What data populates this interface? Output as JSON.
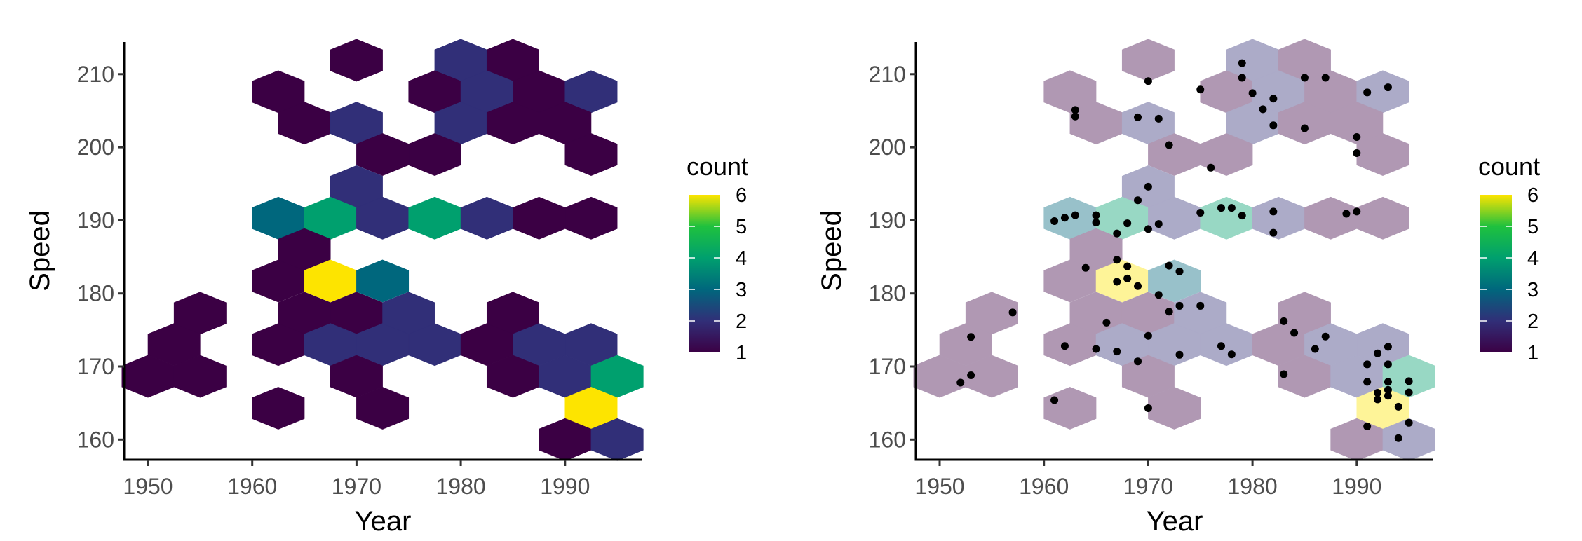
{
  "chart_data": [
    {
      "type": "hexbin",
      "xlabel": "Year",
      "ylabel": "Speed",
      "xlim": [
        1948,
        1997.3
      ],
      "ylim": [
        157.3,
        214.6
      ],
      "xticks": [
        1950,
        1960,
        1970,
        1980,
        1990
      ],
      "yticks": [
        160,
        170,
        180,
        190,
        200,
        210
      ],
      "grid": false,
      "legend": {
        "title": "count",
        "placement": "right",
        "min": 1,
        "max": 6,
        "labels": [
          "1",
          "2",
          "3",
          "4",
          "5",
          "6"
        ]
      },
      "colorscale": [
        "#3b0044",
        "#312f78",
        "#00677d",
        "#00a06e",
        "#1fc13e",
        "#fde400"
      ],
      "hex_alpha": 1,
      "hexes": [
        [
          1970,
          211.9,
          1
        ],
        [
          1980,
          211.9,
          2
        ],
        [
          1985,
          211.9,
          1
        ],
        [
          1962.5,
          207.6,
          1
        ],
        [
          1977.5,
          207.6,
          1
        ],
        [
          1982.5,
          207.6,
          2
        ],
        [
          1987.5,
          207.6,
          1
        ],
        [
          1992.5,
          207.6,
          2
        ],
        [
          1965,
          203.3,
          1
        ],
        [
          1970,
          203.3,
          2
        ],
        [
          1980,
          203.3,
          2
        ],
        [
          1985,
          203.3,
          1
        ],
        [
          1990,
          203.3,
          1
        ],
        [
          1972.5,
          199.0,
          1
        ],
        [
          1977.5,
          199.0,
          1
        ],
        [
          1992.5,
          199.0,
          1
        ],
        [
          1970,
          194.6,
          2
        ],
        [
          1962.5,
          190.3,
          3
        ],
        [
          1967.5,
          190.3,
          4
        ],
        [
          1972.5,
          190.3,
          2
        ],
        [
          1977.5,
          190.3,
          4
        ],
        [
          1982.5,
          190.3,
          2
        ],
        [
          1987.5,
          190.3,
          1
        ],
        [
          1992.5,
          190.3,
          1
        ],
        [
          1965,
          186.0,
          1
        ],
        [
          1962.5,
          181.7,
          1
        ],
        [
          1967.5,
          181.7,
          6
        ],
        [
          1972.5,
          181.7,
          3
        ],
        [
          1955,
          177.3,
          1
        ],
        [
          1965,
          177.3,
          1
        ],
        [
          1970,
          177.3,
          1
        ],
        [
          1975,
          177.3,
          2
        ],
        [
          1985,
          177.3,
          1
        ],
        [
          1952.5,
          173.0,
          1
        ],
        [
          1962.5,
          173.0,
          1
        ],
        [
          1967.5,
          173.0,
          2
        ],
        [
          1972.5,
          173.0,
          2
        ],
        [
          1977.5,
          173.0,
          2
        ],
        [
          1982.5,
          173.0,
          1
        ],
        [
          1987.5,
          173.0,
          2
        ],
        [
          1992.5,
          173.0,
          2
        ],
        [
          1950,
          168.65,
          1
        ],
        [
          1955,
          168.65,
          1
        ],
        [
          1970,
          168.65,
          1
        ],
        [
          1985,
          168.65,
          1
        ],
        [
          1990,
          168.65,
          2
        ],
        [
          1995,
          168.65,
          4
        ],
        [
          1962.5,
          164.3,
          1
        ],
        [
          1972.5,
          164.3,
          1
        ],
        [
          1992.5,
          164.3,
          6
        ],
        [
          1990,
          160.0,
          1
        ],
        [
          1995,
          160.0,
          2
        ]
      ]
    },
    {
      "type": "hexbin+scatter",
      "xlabel": "Year",
      "ylabel": "Speed",
      "xlim": [
        1948,
        1997.3
      ],
      "ylim": [
        157.3,
        214.6
      ],
      "xticks": [
        1950,
        1960,
        1970,
        1980,
        1990
      ],
      "yticks": [
        160,
        170,
        180,
        190,
        200,
        210
      ],
      "grid": false,
      "legend": {
        "title": "count",
        "placement": "right",
        "min": 1,
        "max": 6,
        "labels": [
          "1",
          "2",
          "3",
          "4",
          "5",
          "6"
        ]
      },
      "colorscale": [
        "#3b0044",
        "#312f78",
        "#00677d",
        "#00a06e",
        "#1fc13e",
        "#fde400"
      ],
      "hex_alpha": 0.4,
      "hexes": "same as first panel",
      "points_color": "#000000",
      "points": [
        [
          1970,
          209.05
        ],
        [
          1963,
          205.1
        ],
        [
          1963,
          204.2
        ],
        [
          1969,
          204.1
        ],
        [
          1971,
          203.9
        ],
        [
          1972,
          200.3
        ],
        [
          1970,
          194.6
        ],
        [
          1969,
          192.75
        ],
        [
          1961,
          189.9
        ],
        [
          1962,
          190.35
        ],
        [
          1963,
          190.7
        ],
        [
          1965,
          190.7
        ],
        [
          1965,
          189.7
        ],
        [
          1968,
          189.6
        ],
        [
          1967,
          188.2
        ],
        [
          1970,
          188.8
        ],
        [
          1971,
          189.5
        ],
        [
          1967,
          184.6
        ],
        [
          1979,
          211.5
        ],
        [
          1979,
          209.5
        ],
        [
          1975,
          207.9
        ],
        [
          1980,
          207.4
        ],
        [
          1982,
          206.65
        ],
        [
          1981,
          205.2
        ],
        [
          1982,
          203.0
        ],
        [
          1985,
          209.5
        ],
        [
          1987,
          209.5
        ],
        [
          1991,
          207.5
        ],
        [
          1993,
          208.2
        ],
        [
          1985,
          202.6
        ],
        [
          1990,
          201.4
        ],
        [
          1990,
          199.2
        ],
        [
          1976,
          197.2
        ],
        [
          1975,
          191.05
        ],
        [
          1977,
          191.7
        ],
        [
          1978,
          191.7
        ],
        [
          1979,
          190.65
        ],
        [
          1982,
          191.2
        ],
        [
          1982,
          188.3
        ],
        [
          1989,
          190.9
        ],
        [
          1990,
          191.2
        ],
        [
          1968,
          183.7
        ],
        [
          1964,
          183.5
        ],
        [
          1967,
          181.6
        ],
        [
          1968,
          182.05
        ],
        [
          1969,
          181.0
        ],
        [
          1972,
          183.8
        ],
        [
          1973,
          183.0
        ],
        [
          1971,
          179.8
        ],
        [
          1972,
          177.5
        ],
        [
          1957,
          177.4
        ],
        [
          1966,
          176.0
        ],
        [
          1953,
          174.05
        ],
        [
          1970,
          174.2
        ],
        [
          1962,
          172.8
        ],
        [
          1965,
          172.4
        ],
        [
          1967,
          172.05
        ],
        [
          1969,
          170.7
        ],
        [
          1953,
          168.8
        ],
        [
          1952,
          167.8
        ],
        [
          1961,
          165.4
        ],
        [
          1970,
          164.3
        ],
        [
          1973,
          178.3
        ],
        [
          1975,
          178.3
        ],
        [
          1973,
          171.6
        ],
        [
          1977,
          172.8
        ],
        [
          1978,
          171.65
        ],
        [
          1983,
          176.2
        ],
        [
          1984,
          174.6
        ],
        [
          1987,
          174.1
        ],
        [
          1986,
          172.4
        ],
        [
          1983,
          168.95
        ],
        [
          1993,
          172.7
        ],
        [
          1992,
          171.8
        ],
        [
          1991,
          170.3
        ],
        [
          1993,
          170.3
        ],
        [
          1991,
          167.9
        ],
        [
          1993,
          167.9
        ],
        [
          1995,
          168.0
        ],
        [
          1995,
          166.45
        ],
        [
          1992,
          166.4
        ],
        [
          1992,
          165.5
        ],
        [
          1993,
          166.8
        ],
        [
          1993,
          166.0
        ],
        [
          1994,
          164.5
        ],
        [
          1995,
          162.3
        ],
        [
          1991,
          161.8
        ],
        [
          1994,
          160.2
        ]
      ]
    }
  ]
}
